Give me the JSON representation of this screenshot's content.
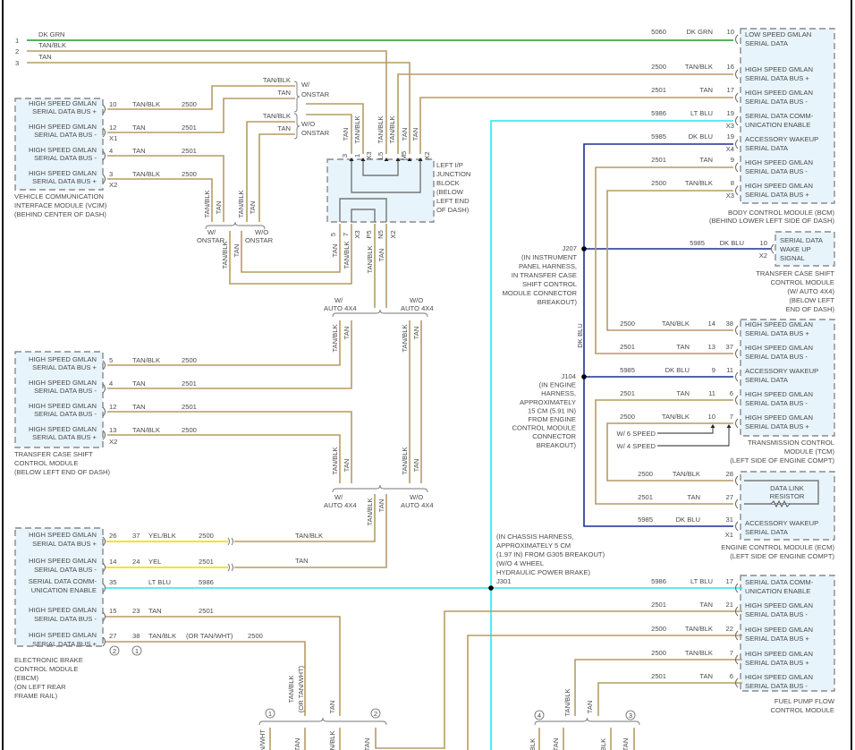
{
  "colors": {
    "tan": "#b59c64",
    "dk_grn": "#1f9a2a",
    "lt_blu": "#2fe4ee",
    "dk_blu": "#1b2e96",
    "yel": "#f2e52a",
    "module_fill": "#e8f4fb"
  },
  "top_wires": [
    {
      "num": "1",
      "color": "DK GRN"
    },
    {
      "num": "2",
      "color": "TAN/BLK"
    },
    {
      "num": "3",
      "color": "TAN"
    }
  ],
  "vcim": {
    "name_lines": [
      "VEHICLE COMMUNICATION",
      "INTERFACE MODULE (VCIM)",
      "(BEHIND CENTER OF DASH)"
    ],
    "pins": [
      {
        "l1": "HIGH SPEED GMLAN",
        "l2": "SERIAL DATA BUS +",
        "pin": "10",
        "color": "TAN/BLK",
        "circuit": "2500"
      },
      {
        "l1": "HIGH SPEED GMLAN",
        "l2": "SERIAL DATA BUS -",
        "pin": "12",
        "color": "TAN",
        "circuit": "2501"
      },
      {
        "l1": "HIGH SPEED GMLAN",
        "l2": "SERIAL DATA BUS -",
        "pin": "4",
        "color": "TAN",
        "circuit": "2501"
      },
      {
        "l1": "HIGH SPEED GMLAN",
        "l2": "SERIAL DATA BUS +",
        "pin": "3",
        "color": "TAN/BLK",
        "circuit": "2500"
      }
    ],
    "connectors": [
      "X1",
      "X2"
    ]
  },
  "onstar": {
    "with": [
      "W/",
      "ONSTAR"
    ],
    "without": [
      "W/O",
      "ONSTAR"
    ],
    "upper_wire_labels": [
      "TAN/BLK",
      "TAN",
      "TAN/BLK",
      "TAN"
    ]
  },
  "junction_block": {
    "name_lines": [
      "LEFT I/P",
      "JUNCTION",
      "BLOCK",
      "(BELOW",
      "LEFT END",
      "OF DASH)"
    ],
    "top_pins": [
      "3",
      "1",
      "X3",
      "L5",
      "M5",
      "X2"
    ],
    "bottom_pins": [
      "5",
      "7",
      "X3",
      "P5",
      "N5",
      "X2"
    ]
  },
  "auto4x4": {
    "with": [
      "W/",
      "AUTO 4X4"
    ],
    "without": [
      "W/O",
      "AUTO 4X4"
    ]
  },
  "tcscm_left": {
    "name_lines": [
      "TRANSFER CASE SHIFT",
      "CONTROL MODULE",
      "(BELOW LEFT END OF DASH)"
    ],
    "pins": [
      {
        "l1": "HIGH SPEED GMLAN",
        "l2": "SERIAL DATA BUS +",
        "pin": "5",
        "color": "TAN/BLK",
        "circuit": "2500"
      },
      {
        "l1": "HIGH SPEED GMLAN",
        "l2": "SERIAL DATA BUS -",
        "pin": "4",
        "color": "TAN",
        "circuit": "2501"
      },
      {
        "l1": "HIGH SPEED GMLAN",
        "l2": "SERIAL DATA BUS -",
        "pin": "12",
        "color": "TAN",
        "circuit": "2501"
      },
      {
        "l1": "HIGH SPEED GMLAN",
        "l2": "SERIAL DATA BUS +",
        "pin": "13",
        "color": "TAN/BLK",
        "circuit": "2500"
      }
    ],
    "connector": "X2"
  },
  "ebcm": {
    "name_lines": [
      "ELECTRONIC BRAKE",
      "CONTROL MODULE",
      "(EBCM)",
      "(ON LEFT REAR",
      "FRAME RAIL)"
    ],
    "pins": [
      {
        "l1": "HIGH SPEED GMLAN",
        "l2": "SERIAL DATA BUS +",
        "pin_a": "26",
        "pin_b": "37",
        "color": "YEL/BLK",
        "circuit": "2500",
        "inline_color": "TAN/BLK"
      },
      {
        "l1": "HIGH SPEED GMLAN",
        "l2": "SERIAL DATA BUS -",
        "pin_a": "14",
        "pin_b": "24",
        "color": "YEL",
        "circuit": "2501",
        "inline_color": "TAN"
      },
      {
        "l1": "SERIAL DATA COMM-",
        "l2": "UNICATION ENABLE",
        "pin_a": "35",
        "pin_b": "",
        "color": "LT BLU",
        "circuit": "5986"
      },
      {
        "l1": "HIGH SPEED GMLAN",
        "l2": "SERIAL DATA BUS -",
        "pin_a": "15",
        "pin_b": "23",
        "color": "TAN",
        "circuit": "2501"
      },
      {
        "l1": "HIGH SPEED GMLAN",
        "l2": "SERIAL DATA BUS +",
        "pin_a": "27",
        "pin_b": "38",
        "color": "TAN/BLK",
        "circuit": "2500",
        "alt_color": "(OR TAN/WHT)"
      }
    ],
    "variant_marks": [
      "2",
      "1"
    ]
  },
  "variant_circles": [
    "1",
    "2",
    "4",
    "3"
  ],
  "vertical_labels": [
    "TAN",
    "TAN/BLK",
    "TAN/BLK",
    "TAN/BLK",
    "TAN",
    "TAN",
    "TAN/BLK",
    "TAN",
    "TAN/BLK",
    "TAN",
    "TAN/BLK",
    "TAN",
    "TAN",
    "TAN/BLK",
    "TAN/BLK",
    "TAN",
    "TAN/BLK",
    "TAN",
    "TAN/BLK",
    "TAN",
    "TAN/BLK",
    "TAN",
    "TAN/BLK",
    "TAN",
    "TAN/BLK",
    "TAN",
    "DK BLU",
    "TAN/BLK",
    "(OR TAN/WHT)",
    "TAN",
    "TAN/WHT",
    "TAN",
    "TAN/BLK",
    "TAN",
    "TAN/BLK",
    "TAN",
    "BLK",
    "TAN",
    "BLK",
    "TAN"
  ],
  "bcm": {
    "name_lines": [
      "BODY CONTROL MODULE (BCM)",
      "(BEHIND LOWER LEFT SIDE OF DASH)"
    ],
    "pins": [
      {
        "l1": "LOW SPEED GMLAN",
        "l2": "SERIAL DATA",
        "pin": "10",
        "color": "DK GRN",
        "circuit": "5060",
        "conn": ""
      },
      {
        "l1": "HIGH SPEED GMLAN",
        "l2": "SERIAL DATA BUS +",
        "pin": "16",
        "color": "TAN/BLK",
        "circuit": "2500",
        "conn": ""
      },
      {
        "l1": "HIGH SPEED GMLAN",
        "l2": "SERIAL DATA BUS -",
        "pin": "17",
        "color": "TAN",
        "circuit": "2501",
        "conn": ""
      },
      {
        "l1": "SERIAL DATA COMM-",
        "l2": "UNICATION ENABLE",
        "pin": "19",
        "color": "LT BLU",
        "circuit": "5986",
        "conn": "X3"
      },
      {
        "l1": "ACCESSORY WAKEUP",
        "l2": "SERIAL DATA",
        "pin": "19",
        "color": "DK BLU",
        "circuit": "5985",
        "conn": "X4"
      },
      {
        "l1": "HIGH SPEED GMLAN",
        "l2": "SERIAL DATA BUS -",
        "pin": "9",
        "color": "TAN",
        "circuit": "2501",
        "conn": ""
      },
      {
        "l1": "HIGH SPEED GMLAN",
        "l2": "SERIAL DATA BUS +",
        "pin": "8",
        "color": "TAN/BLK",
        "circuit": "2500",
        "conn": "X3"
      }
    ]
  },
  "tcscm_right": {
    "lines": [
      "SERIAL DATA",
      "WAKE UP",
      "SIGNAL"
    ],
    "pin": "10",
    "conn": "X2",
    "color": "DK BLU",
    "circuit": "5985",
    "name_lines": [
      "TRANSFER CASE SHIFT",
      "CONTROL MODULE",
      "(W/ AUTO 4X4)",
      "(BELOW LEFT",
      "END OF DASH)"
    ]
  },
  "j207": [
    "J207",
    "(IN INSTRUMENT",
    "PANEL HARNESS,",
    "IN TRANSFER CASE",
    "SHIFT CONTROL",
    "MODULE CONNECTOR",
    "BREAKOUT)"
  ],
  "j104": [
    "J104",
    "(IN ENGINE",
    "HARNESS,",
    "APPROXIMATELY",
    "15 CM (5.91 IN)",
    "FROM ENGINE",
    "CONTROL MODULE",
    "CONNECTOR",
    "BREAKOUT)"
  ],
  "j301": [
    "(IN CHASSIS HARNESS,",
    "APPROXIMATELY 5 CM",
    "(1.97 IN) FROM G305 BREAKOUT)",
    "(W/O 4 WHEEL",
    "HYDRAULIC POWER BRAKE)",
    "J301"
  ],
  "tcm": {
    "name_lines": [
      "TRANSMISSION CONTROL",
      "MODULE (TCM)",
      "(LEFT SIDE OF ENGINE COMPT)"
    ],
    "pins": [
      {
        "l1": "HIGH SPEED GMLAN",
        "l2": "SERIAL DATA BUS +",
        "pin_a": "14",
        "pin_b": "38",
        "color": "TAN/BLK",
        "circuit": "2500"
      },
      {
        "l1": "HIGH SPEED GMLAN",
        "l2": "SERIAL DATA BUS -",
        "pin_a": "13",
        "pin_b": "37",
        "color": "TAN",
        "circuit": "2501"
      },
      {
        "l1": "ACCESSORY WAKEUP",
        "l2": "SERIAL DATA",
        "pin_a": "9",
        "pin_b": "11",
        "color": "DK BLU",
        "circuit": "5985"
      },
      {
        "l1": "HIGH SPEED GMLAN",
        "l2": "SERIAL DATA BUS -",
        "pin_a": "11",
        "pin_b": "6",
        "color": "TAN",
        "circuit": "2501"
      },
      {
        "l1": "HIGH SPEED GMLAN",
        "l2": "SERIAL DATA BUS +",
        "pin_a": "10",
        "pin_b": "7",
        "color": "TAN/BLK",
        "circuit": "2500"
      }
    ],
    "speed_notes": [
      "W/ 6 SPEED",
      "W/ 4 SPEED"
    ]
  },
  "ecm": {
    "name_lines": [
      "ENGINE CONTROL MODULE (ECM)",
      "(LEFT SIDE OF ENGINE COMPT)"
    ],
    "resistor": [
      "DATA LINK",
      "RESISTOR"
    ],
    "wake": [
      "ACCESSORY WAKEUP",
      "SERIAL DATA"
    ],
    "pins": [
      {
        "pin": "28",
        "color": "TAN/BLK",
        "circuit": "2500"
      },
      {
        "pin": "27",
        "color": "TAN",
        "circuit": "2501"
      },
      {
        "pin": "31",
        "color": "DK BLU",
        "circuit": "5985"
      }
    ],
    "connector": "X1"
  },
  "fuel_pump": {
    "name_lines": [
      "FUEL PUMP FLOW",
      "CONTROL MODULE"
    ],
    "pins": [
      {
        "l1": "SERIAL DATA COMM-",
        "l2": "UNICATION ENABLE",
        "pin": "17",
        "color": "LT BLU",
        "circuit": "5986"
      },
      {
        "l1": "HIGH SPEED GMLAN",
        "l2": "SERIAL DATA BUS -",
        "pin": "21",
        "color": "TAN",
        "circuit": "2501"
      },
      {
        "l1": "HIGH SPEED GMLAN",
        "l2": "SERIAL DATA BUS +",
        "pin": "22",
        "color": "TAN/BLK",
        "circuit": "2500"
      },
      {
        "l1": "HIGH SPEED GMLAN",
        "l2": "SERIAL DATA BUS +",
        "pin": "7",
        "color": "TAN/BLK",
        "circuit": "2500"
      },
      {
        "l1": "HIGH SPEED GMLAN",
        "l2": "SERIAL DATA BUS -",
        "pin": "6",
        "color": "TAN",
        "circuit": "2501"
      }
    ]
  }
}
